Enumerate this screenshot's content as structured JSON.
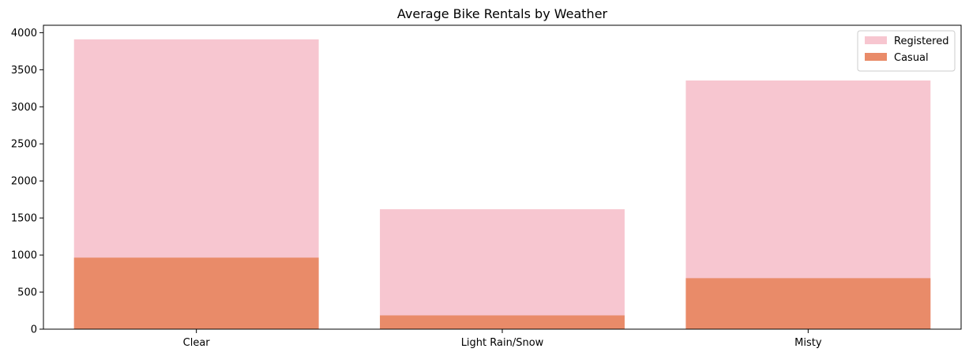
{
  "chart_data": {
    "type": "bar",
    "title": "Average Bike Rentals by Weather",
    "xlabel": "",
    "ylabel": "",
    "categories": [
      "Clear",
      "Light Rain/Snow",
      "Misty"
    ],
    "series": [
      {
        "name": "Registered",
        "values": [
          3910,
          1618,
          3355
        ],
        "color": "#f7c6d0"
      },
      {
        "name": "Casual",
        "values": [
          965,
          186,
          688
        ],
        "color": "#e98b69"
      }
    ],
    "overlap": true,
    "ylim": [
      0,
      4100
    ],
    "yticks": [
      0,
      500,
      1000,
      1500,
      2000,
      2500,
      3000,
      3500,
      4000
    ],
    "grid": false,
    "legend_position": "upper right"
  }
}
